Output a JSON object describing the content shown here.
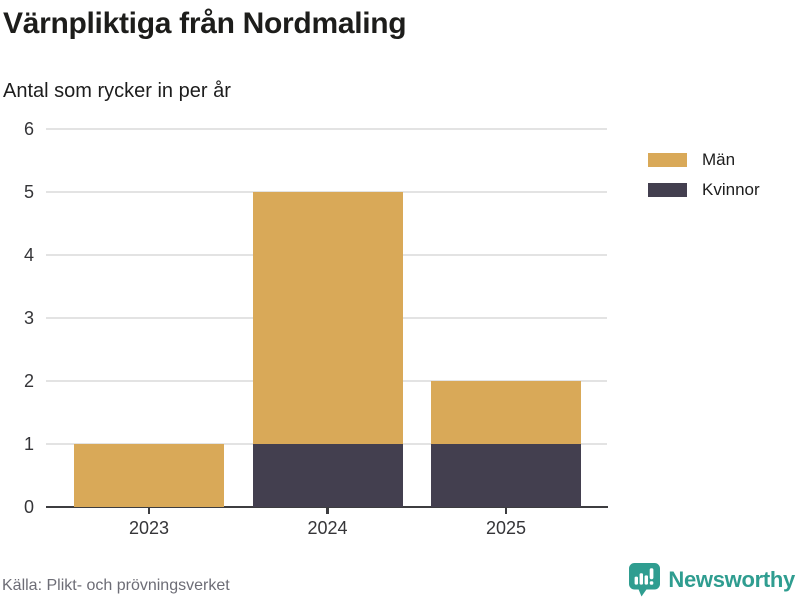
{
  "header": {
    "title": "Värnpliktiga från Nordmaling",
    "subtitle": "Antal som rycker in per år"
  },
  "chart_data": {
    "type": "bar",
    "stacked": true,
    "title": "Värnpliktiga från Nordmaling",
    "subtitle": "Antal som rycker in per år",
    "categories": [
      "2023",
      "2024",
      "2025"
    ],
    "series": [
      {
        "name": "Män",
        "color": "#d9a958",
        "values": [
          1,
          4,
          1
        ]
      },
      {
        "name": "Kvinnor",
        "color": "#433f4f",
        "values": [
          0,
          1,
          1
        ]
      }
    ],
    "stack_order_bottom_to_top": [
      "Kvinnor",
      "Män"
    ],
    "stack_totals": [
      1,
      5,
      2
    ],
    "xlabel": "",
    "ylabel": "",
    "ylim": [
      0,
      6
    ],
    "yticks": [
      0,
      1,
      2,
      3,
      4,
      5,
      6
    ],
    "grid": "horizontal",
    "legend_position": "top-right"
  },
  "legend": {
    "items": [
      {
        "label": "Män",
        "color": "#d9a958"
      },
      {
        "label": "Kvinnor",
        "color": "#433f4f"
      }
    ]
  },
  "footer": {
    "source": "Källa: Plikt- och prövningsverket",
    "brand": "Newsworthy"
  },
  "colors": {
    "bar_men": "#d9a958",
    "bar_women": "#433f4f",
    "grid": "#e3e3e3",
    "axis": "#3d3d40",
    "brand_teal": "#2f9d90",
    "title_text": "#1d1d1b",
    "source_text": "#6d6d76"
  }
}
